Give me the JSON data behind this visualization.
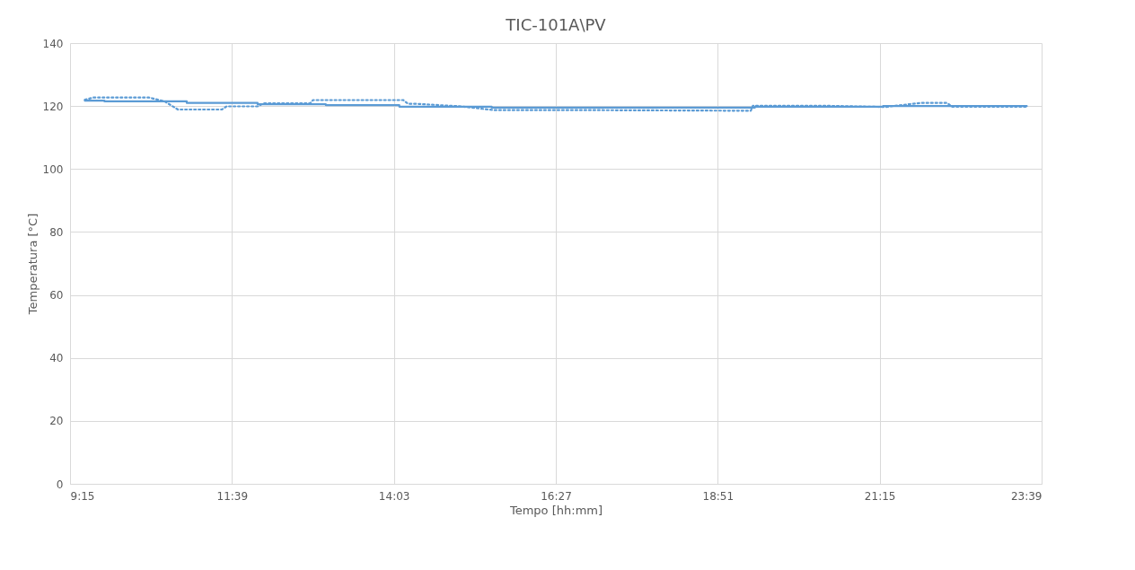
{
  "chart_data": {
    "type": "line",
    "title": "TIC-101A\\PV",
    "xlabel": "Tempo [hh:mm]",
    "ylabel": "Temperatura [°C]",
    "xlim": [
      9.25,
      23.65
    ],
    "ylim": [
      0,
      140
    ],
    "xticks": [
      {
        "value": 9.25,
        "label": "9:15"
      },
      {
        "value": 11.65,
        "label": "11:39"
      },
      {
        "value": 14.05,
        "label": "14:03"
      },
      {
        "value": 16.45,
        "label": "16:27"
      },
      {
        "value": 18.85,
        "label": "18:51"
      },
      {
        "value": 21.25,
        "label": "21:15"
      },
      {
        "value": 23.65,
        "label": "23:39"
      }
    ],
    "yticks": [
      0,
      20,
      40,
      60,
      80,
      100,
      120,
      140
    ],
    "grid": true,
    "legend": false,
    "marker": "none",
    "series": [
      {
        "color": "#5b9bd5",
        "line_style": "solid",
        "x": [
          9.47,
          9.76,
          9.76,
          10.98,
          10.98,
          12.03,
          12.03,
          13.04,
          13.04,
          14.13,
          14.13,
          15.5,
          15.5,
          19.4,
          19.4,
          21.3,
          21.3,
          23.43
        ],
        "values": [
          121.7,
          121.7,
          121.5,
          121.5,
          121,
          121,
          120.6,
          120.6,
          120.3,
          120.3,
          119.8,
          119.8,
          119.5,
          119.5,
          119.8,
          119.8,
          120,
          120
        ]
      },
      {
        "color": "#5b9bd5",
        "line_style": "dotted",
        "x": [
          9.47,
          9.6,
          10.42,
          10.65,
          10.85,
          11.5,
          11.57,
          12.03,
          12.12,
          12.81,
          12.85,
          14.19,
          14.26,
          14.39,
          15.04,
          15.54,
          16.88,
          17.07,
          19.34,
          19.37,
          20.42,
          21.33,
          21.86,
          22.25,
          22.32,
          23.43
        ],
        "values": [
          122,
          122.7,
          122.7,
          121.5,
          118.9,
          118.9,
          119.9,
          119.9,
          120.9,
          120.9,
          121.9,
          121.9,
          120.7,
          120.7,
          119.9,
          118.7,
          118.7,
          118.7,
          118.5,
          120.1,
          120.1,
          119.7,
          121,
          121,
          119.8,
          119.8
        ]
      }
    ]
  }
}
